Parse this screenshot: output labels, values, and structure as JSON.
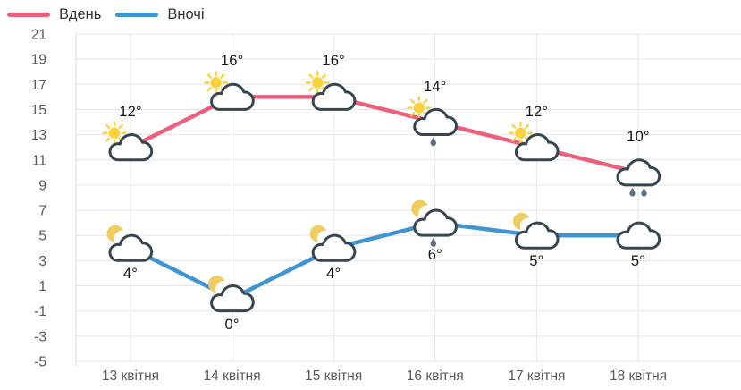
{
  "chart_data": {
    "type": "line",
    "categories": [
      "13 квітня",
      "14 квітня",
      "15 квітня",
      "16 квітня",
      "17 квітня",
      "18 квітня"
    ],
    "y_ticks": [
      21,
      19,
      17,
      15,
      13,
      11,
      9,
      7,
      5,
      3,
      1,
      -1,
      -3,
      -5
    ],
    "ylim": [
      -5,
      21
    ],
    "grid": true,
    "legend_position": "top-left",
    "series": [
      {
        "name": "Вдень",
        "color": "#ec5f7d",
        "values": [
          12,
          16,
          16,
          14,
          12,
          10
        ],
        "point_labels": [
          "12°",
          "16°",
          "16°",
          "14°",
          "12°",
          "10°"
        ],
        "label_position": "above",
        "icons": [
          "sun-cloud",
          "sun-cloud",
          "sun-cloud",
          "sun-cloud-rain-1",
          "sun-cloud",
          "cloud-rain-2"
        ]
      },
      {
        "name": "Вночі",
        "color": "#3e95d1",
        "values": [
          4,
          0,
          4,
          6,
          5,
          5
        ],
        "point_labels": [
          "4°",
          "0°",
          "4°",
          "6°",
          "5°",
          "5°"
        ],
        "label_position": "below",
        "icons": [
          "moon-cloud",
          "moon-cloud",
          "moon-cloud",
          "moon-cloud-rain-1",
          "moon-cloud",
          "cloud"
        ]
      }
    ],
    "style": {
      "grid_color": "#e6e6e6",
      "axis_line_color": "#dcdcdc",
      "tick_label_color": "#595959",
      "point_label_color": "#161616",
      "cloud_outline": "#37474f",
      "cloud_fill": "#ffffff",
      "sun_color": "#fbd23c",
      "moon_color": "#f0cd5e",
      "raindrop_color": "#5e7185",
      "legend_text_color": "#333333"
    }
  }
}
